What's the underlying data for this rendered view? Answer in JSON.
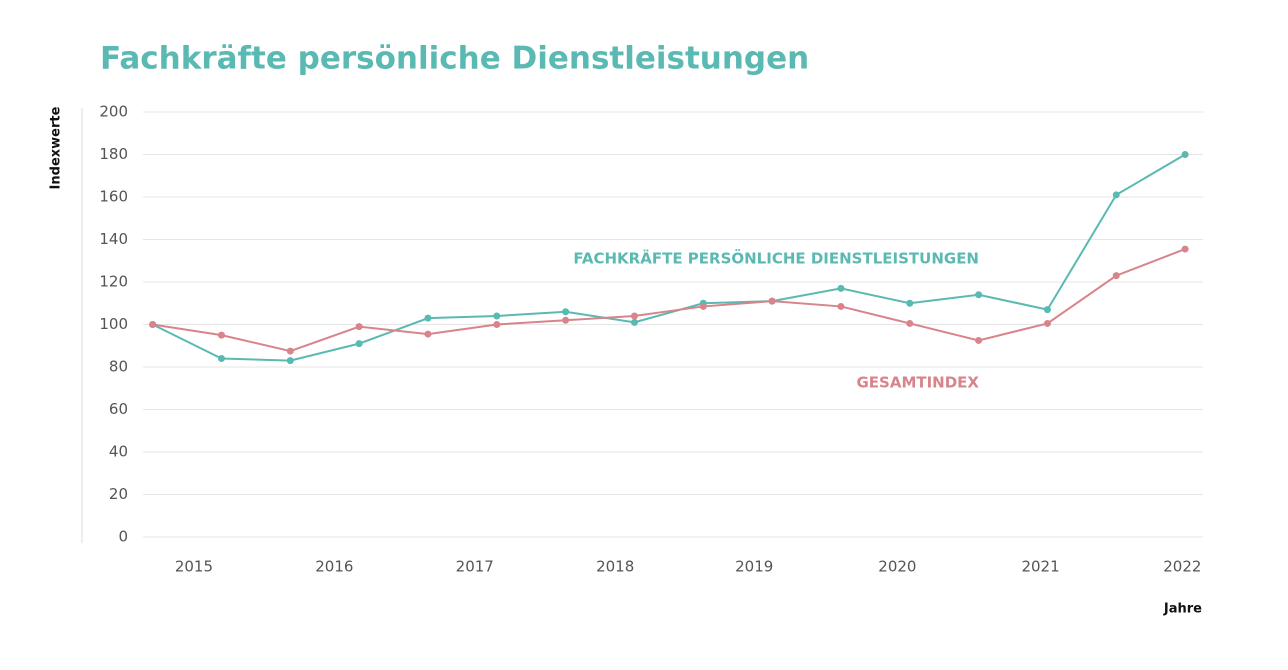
{
  "chart_data": {
    "type": "line",
    "title": "Fachkräfte persönliche Dienstleistungen",
    "y_label": "Indexwerte",
    "x_label": "Jahre",
    "x": [
      2015,
      2015.5,
      2016,
      2016.5,
      2017,
      2017.5,
      2018,
      2018.5,
      2019,
      2019.5,
      2020,
      2020.5,
      2021,
      2021.5,
      2022,
      2022.5
    ],
    "series": [
      {
        "name": "FACHKRÄFTE PERSÖNLICHE DIENSTLEISTUNGEN",
        "color": "#5ab9b2",
        "values": [
          100,
          84,
          83,
          91,
          103,
          104,
          106,
          101,
          110,
          111,
          117,
          110,
          114,
          107,
          161,
          180
        ]
      },
      {
        "name": "GESAMTINDEX",
        "color": "#d7848a",
        "values": [
          100,
          95,
          87.5,
          99,
          95.5,
          100,
          102,
          104,
          108.5,
          111,
          108.5,
          100.5,
          92.5,
          100.5,
          123,
          135.5
        ]
      }
    ],
    "xlim": [
      2014.93,
      2022.63
    ],
    "xticks": [
      {
        "value": 2015.3,
        "label": "2015"
      },
      {
        "value": 2016.32,
        "label": "2016"
      },
      {
        "value": 2017.34,
        "label": "2017"
      },
      {
        "value": 2018.36,
        "label": "2018"
      },
      {
        "value": 2019.37,
        "label": "2019"
      },
      {
        "value": 2020.41,
        "label": "2020"
      },
      {
        "value": 2021.45,
        "label": "2021"
      },
      {
        "value": 2022.48,
        "label": "2022"
      }
    ],
    "ylim": [
      0,
      200
    ],
    "yticks": [
      0,
      20,
      40,
      60,
      80,
      100,
      120,
      140,
      160,
      180,
      200
    ],
    "grid": true
  }
}
